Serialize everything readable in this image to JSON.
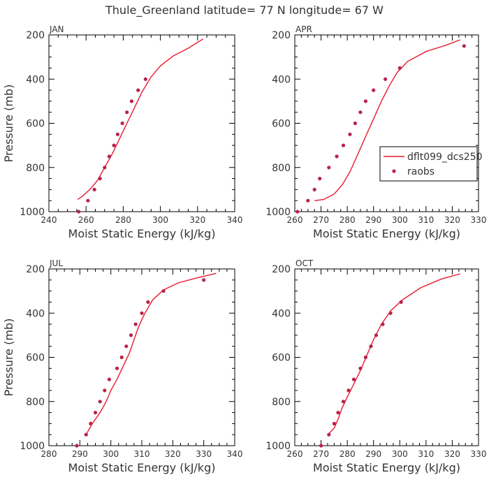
{
  "title": "Thule_Greenland  latitude= 77 N longitude= 67 W",
  "colors": {
    "model": "#e8192c",
    "obs": "#b8224e",
    "axis": "#000000",
    "text": "#333333"
  },
  "legend": {
    "location": "APR panel, right side",
    "model_label": "dflt099_dcs250",
    "obs_label": "raobs"
  },
  "chart_data": [
    {
      "type": "line",
      "panel": "JAN",
      "xlabel": "Moist Static Energy (kJ/kg)",
      "ylabel": "Pressure (mb)",
      "xlim": [
        240,
        340
      ],
      "ylim": [
        1000,
        200
      ],
      "y_inverted": true,
      "xticks": [
        240,
        260,
        280,
        300,
        320,
        340
      ],
      "yticks": [
        200,
        400,
        600,
        800,
        1000
      ],
      "series": [
        {
          "name": "dflt099_dcs250",
          "kind": "line",
          "points": [
            [
              255.5,
              945
            ],
            [
              258,
              930
            ],
            [
              262,
              900
            ],
            [
              266,
              860
            ],
            [
              270,
              800
            ],
            [
              274,
              740
            ],
            [
              278,
              670
            ],
            [
              282,
              600
            ],
            [
              286,
              530
            ],
            [
              290,
              460
            ],
            [
              295,
              390
            ],
            [
              300,
              340
            ],
            [
              307,
              295
            ],
            [
              315,
              260
            ],
            [
              323,
              218
            ]
          ]
        },
        {
          "name": "raobs",
          "kind": "scatter",
          "points": [
            [
              256,
              1000
            ],
            [
              261,
              950
            ],
            [
              264.5,
              900
            ],
            [
              267.5,
              850
            ],
            [
              270,
              800
            ],
            [
              272.5,
              750
            ],
            [
              275,
              700
            ],
            [
              277,
              650
            ],
            [
              279.5,
              600
            ],
            [
              282,
              550
            ],
            [
              284.5,
              500
            ],
            [
              288,
              450
            ],
            [
              292,
              400
            ]
          ]
        }
      ]
    },
    {
      "type": "line",
      "panel": "APR",
      "xlabel": "Moist Static Energy (kJ/kg)",
      "ylabel": "",
      "xlim": [
        260,
        330
      ],
      "ylim": [
        1000,
        200
      ],
      "y_inverted": true,
      "xticks": [
        260,
        270,
        280,
        290,
        300,
        310,
        320,
        330
      ],
      "yticks": [
        200,
        400,
        600,
        800,
        1000
      ],
      "series": [
        {
          "name": "dflt099_dcs250",
          "kind": "line",
          "points": [
            [
              267.5,
              950
            ],
            [
              271,
              945
            ],
            [
              275,
              920
            ],
            [
              278,
              880
            ],
            [
              281,
              820
            ],
            [
              284,
              740
            ],
            [
              287,
              660
            ],
            [
              290,
              580
            ],
            [
              293,
              500
            ],
            [
              296,
              430
            ],
            [
              299,
              370
            ],
            [
              303,
              320
            ],
            [
              310,
              275
            ],
            [
              318,
              245
            ],
            [
              323,
              222
            ]
          ]
        },
        {
          "name": "raobs",
          "kind": "scatter",
          "points": [
            [
              261,
              1000
            ],
            [
              265,
              950
            ],
            [
              267.5,
              900
            ],
            [
              269.5,
              850
            ],
            [
              273,
              800
            ],
            [
              276,
              750
            ],
            [
              278.5,
              700
            ],
            [
              281,
              650
            ],
            [
              283,
              600
            ],
            [
              285,
              550
            ],
            [
              287,
              500
            ],
            [
              290,
              450
            ],
            [
              294.5,
              400
            ],
            [
              300,
              350
            ],
            [
              324.5,
              250
            ]
          ]
        }
      ]
    },
    {
      "type": "line",
      "panel": "JUL",
      "xlabel": "Moist Static Energy (kJ/kg)",
      "ylabel": "Pressure (mb)",
      "xlim": [
        280,
        340
      ],
      "ylim": [
        1000,
        200
      ],
      "y_inverted": true,
      "xticks": [
        280,
        290,
        300,
        310,
        320,
        330,
        340
      ],
      "yticks": [
        200,
        400,
        600,
        800,
        1000
      ],
      "series": [
        {
          "name": "dflt099_dcs250",
          "kind": "line",
          "points": [
            [
              292,
              950
            ],
            [
              294,
              900
            ],
            [
              296.5,
              850
            ],
            [
              298.5,
              800
            ],
            [
              300,
              750
            ],
            [
              302,
              700
            ],
            [
              304,
              640
            ],
            [
              306,
              580
            ],
            [
              307.5,
              520
            ],
            [
              309,
              460
            ],
            [
              311,
              400
            ],
            [
              313.5,
              340
            ],
            [
              317,
              295
            ],
            [
              322,
              262
            ],
            [
              328,
              240
            ],
            [
              334,
              220
            ]
          ]
        },
        {
          "name": "raobs",
          "kind": "scatter",
          "points": [
            [
              289,
              1000
            ],
            [
              292,
              950
            ],
            [
              293.5,
              900
            ],
            [
              295,
              850
            ],
            [
              296.5,
              800
            ],
            [
              298,
              750
            ],
            [
              299.5,
              700
            ],
            [
              302,
              650
            ],
            [
              303.5,
              600
            ],
            [
              305,
              550
            ],
            [
              306.5,
              500
            ],
            [
              308,
              450
            ],
            [
              310,
              400
            ],
            [
              312,
              350
            ],
            [
              317,
              300
            ],
            [
              330,
              250
            ]
          ]
        }
      ]
    },
    {
      "type": "line",
      "panel": "OCT",
      "xlabel": "Moist Static Energy (kJ/kg)",
      "ylabel": "",
      "xlim": [
        260,
        330
      ],
      "ylim": [
        1000,
        200
      ],
      "y_inverted": true,
      "xticks": [
        260,
        270,
        280,
        290,
        300,
        310,
        320,
        330
      ],
      "yticks": [
        200,
        400,
        600,
        800,
        1000
      ],
      "series": [
        {
          "name": "dflt099_dcs250",
          "kind": "line",
          "points": [
            [
              273,
              945
            ],
            [
              275,
              920
            ],
            [
              276.5,
              880
            ],
            [
              278,
              830
            ],
            [
              280,
              780
            ],
            [
              282.5,
              720
            ],
            [
              285,
              660
            ],
            [
              287.5,
              590
            ],
            [
              290,
              520
            ],
            [
              293,
              450
            ],
            [
              296.5,
              390
            ],
            [
              301,
              340
            ],
            [
              308,
              285
            ],
            [
              316,
              245
            ],
            [
              323,
              222
            ]
          ]
        },
        {
          "name": "raobs",
          "kind": "scatter",
          "points": [
            [
              270,
              1000
            ],
            [
              273,
              950
            ],
            [
              275,
              900
            ],
            [
              276.5,
              850
            ],
            [
              278.5,
              800
            ],
            [
              280.5,
              750
            ],
            [
              282.5,
              700
            ],
            [
              285,
              650
            ],
            [
              287,
              600
            ],
            [
              289,
              550
            ],
            [
              291,
              500
            ],
            [
              293.5,
              450
            ],
            [
              296.5,
              400
            ],
            [
              300.5,
              350
            ]
          ]
        }
      ]
    }
  ]
}
